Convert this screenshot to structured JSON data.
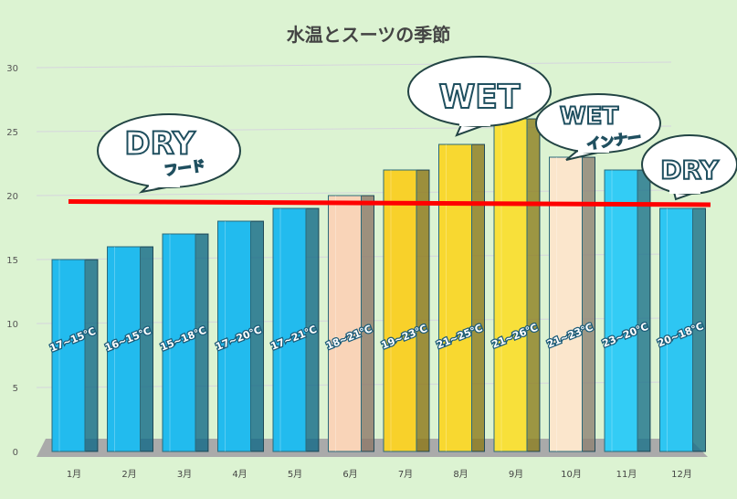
{
  "chart_data": {
    "type": "bar",
    "title": "水温とスーツの季節",
    "categories": [
      "1月",
      "2月",
      "3月",
      "4月",
      "5月",
      "6月",
      "7月",
      "8月",
      "9月",
      "10月",
      "11月",
      "12月"
    ],
    "values": [
      15,
      16,
      17,
      18,
      19,
      20,
      22,
      24,
      26,
      23,
      22,
      19
    ],
    "data_labels": [
      "17~15℃",
      "16~15℃",
      "15~18℃",
      "17~20℃",
      "17~21℃",
      "18~21℃",
      "19~23℃",
      "21~25℃",
      "21~26℃",
      "21~23℃",
      "23~20℃",
      "20~18℃"
    ],
    "bar_colors": [
      "#22bbee",
      "#22bbee",
      "#22bbee",
      "#22bbee",
      "#22bbee",
      "#f9d4b8",
      "#f8d12a",
      "#f8d830",
      "#f8e03a",
      "#fbe6cc",
      "#33ccf5",
      "#2ec6f2"
    ],
    "ylim": [
      0,
      30
    ],
    "yticks": [
      0,
      5,
      10,
      15,
      20,
      25,
      30
    ],
    "grid": true,
    "reference_line": {
      "value": 19.5,
      "color": "#ff0000"
    },
    "annotations": [
      {
        "text": "DRY",
        "sub": "フード"
      },
      {
        "text": "WET",
        "sub": ""
      },
      {
        "text": "WET",
        "sub": "インナー"
      },
      {
        "text": "DRY",
        "sub": ""
      }
    ]
  }
}
